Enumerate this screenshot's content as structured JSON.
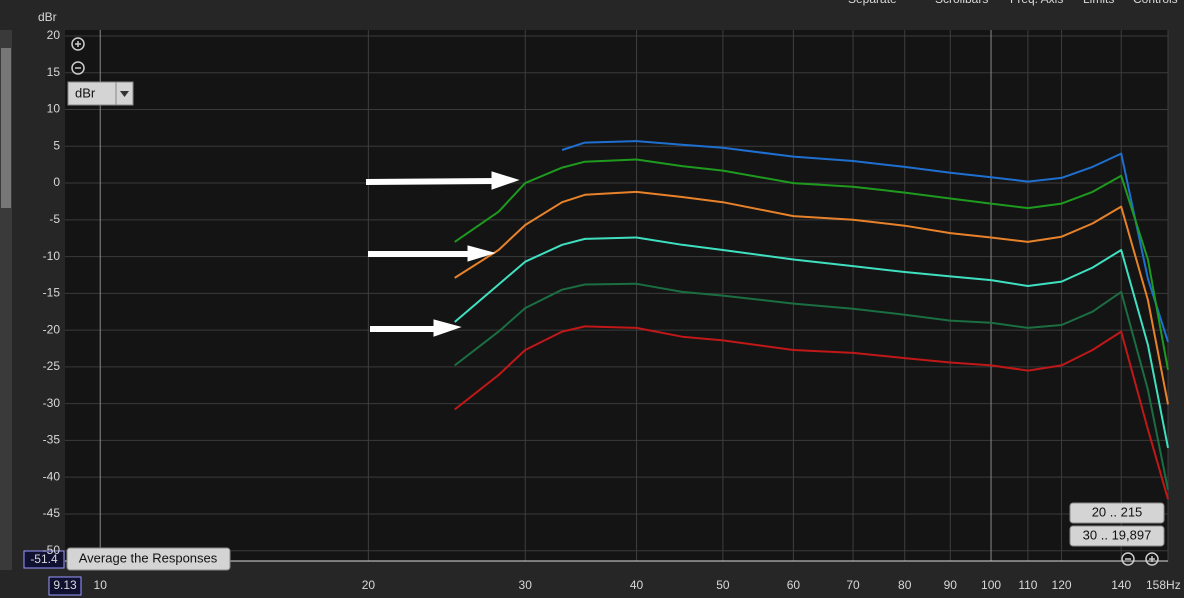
{
  "chart_data": {
    "type": "line",
    "y_label": "dBr",
    "x": [
      25,
      28,
      30,
      33,
      35,
      40,
      45,
      50,
      60,
      70,
      80,
      90,
      100,
      110,
      120,
      130,
      140,
      150,
      158
    ],
    "series": [
      {
        "color": "#1e6fd0",
        "values": [
          null,
          null,
          null,
          4.5,
          5.5,
          5.7,
          5.2,
          4.8,
          3.6,
          3.0,
          2.2,
          1.4,
          0.8,
          0.2,
          0.7,
          2.2,
          4.0,
          -13,
          -21.6
        ]
      },
      {
        "color": "#1e9a1e",
        "values": [
          -8,
          -3.9,
          0.0,
          2.1,
          2.9,
          3.2,
          2.3,
          1.7,
          0,
          -0.5,
          -1.3,
          -2.1,
          -2.8,
          -3.4,
          -2.8,
          -1.2,
          1.0,
          -10.4,
          -25.4
        ]
      },
      {
        "color": "#e8822a",
        "values": [
          -12.9,
          -9.1,
          -5.7,
          -2.6,
          -1.6,
          -1.2,
          -1.9,
          -2.6,
          -4.5,
          -5,
          -5.8,
          -6.8,
          -7.4,
          -8,
          -7.3,
          -5.5,
          -3.2,
          -15.9,
          -30.1
        ]
      },
      {
        "color": "#3fe0c0",
        "values": [
          -18.9,
          -13.8,
          -10.7,
          -8.4,
          -7.6,
          -7.4,
          -8.4,
          -9.1,
          -10.4,
          -11.3,
          -12.1,
          -12.7,
          -13.2,
          -14,
          -13.4,
          -11.5,
          -9.1,
          -22,
          -36
        ]
      },
      {
        "color": "#1a6e42",
        "values": [
          -24.8,
          -20.2,
          -17,
          -14.5,
          -13.8,
          -13.7,
          -14.8,
          -15.3,
          -16.4,
          -17.1,
          -17.9,
          -18.7,
          -19,
          -19.7,
          -19.3,
          -17.5,
          -14.8,
          -28.1,
          -41.7
        ]
      },
      {
        "color": "#c01818",
        "values": [
          -30.8,
          -26.1,
          -22.7,
          -20.2,
          -19.5,
          -19.7,
          -20.9,
          -21.4,
          -22.7,
          -23.1,
          -23.8,
          -24.4,
          -24.8,
          -25.5,
          -24.8,
          -22.7,
          -20.2,
          -33.5,
          -43
        ]
      }
    ],
    "xlim": [
      9.13,
      158
    ],
    "log_x": true,
    "xticks": [
      10,
      20,
      30,
      40,
      50,
      60,
      70,
      80,
      90,
      100,
      110,
      120,
      140,
      {
        "value": 158,
        "label": "158Hz"
      }
    ],
    "ylim": [
      -51.4,
      20
    ],
    "yticks": [
      20,
      15,
      10,
      5,
      0,
      -5,
      -10,
      -15,
      -20,
      -25,
      -30,
      -35,
      -40,
      -45,
      -50
    ],
    "grid": true
  },
  "ui": {
    "menu": [
      "Separate",
      "Scrollbars",
      "Freq. Axis",
      "Limits",
      "Controls"
    ],
    "unit_select": "dBr",
    "average_button": "Average the Responses",
    "range_buttons": [
      "20 .. 215",
      "30 .. 19,897"
    ]
  }
}
